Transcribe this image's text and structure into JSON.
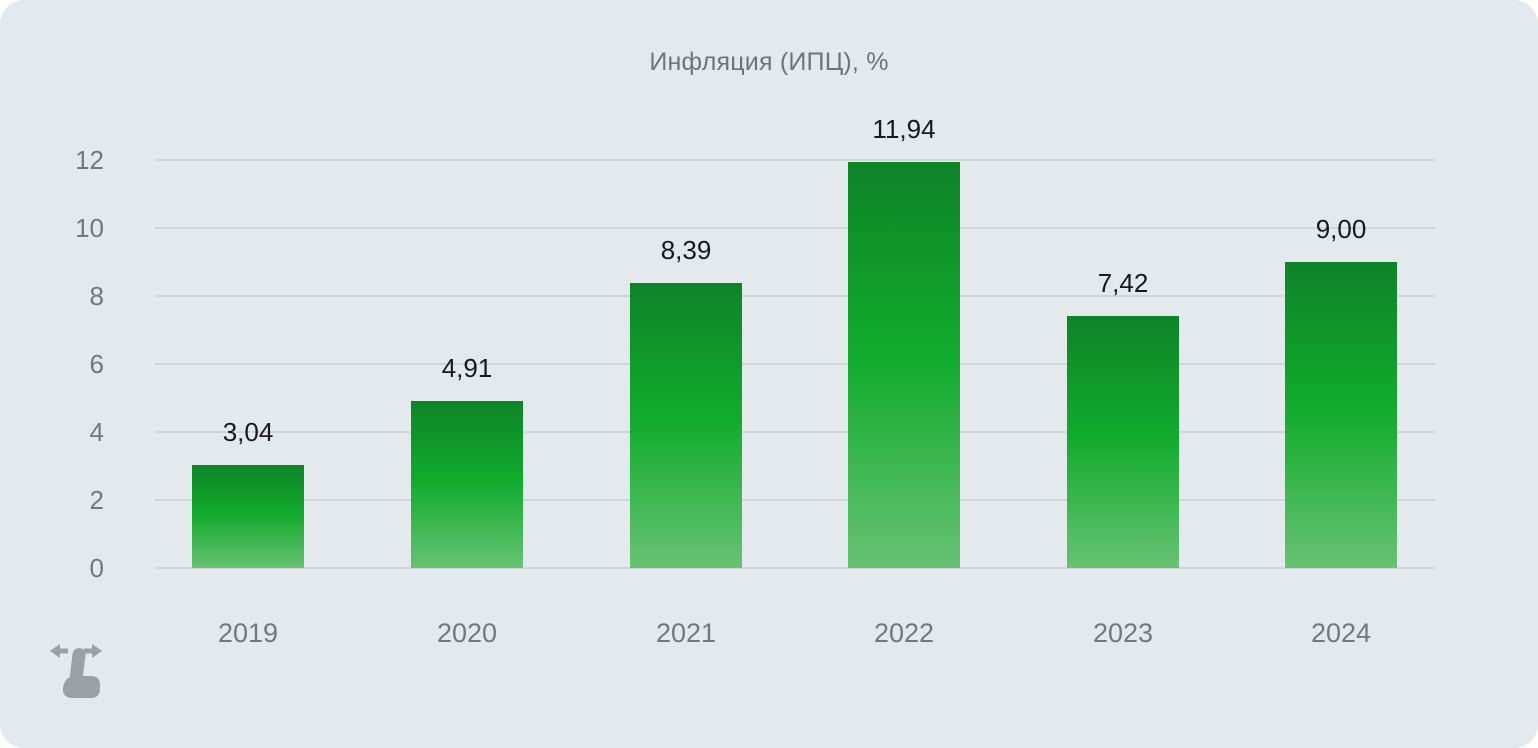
{
  "title": "Инфляция (ИПЦ), %",
  "chart_data": {
    "type": "bar",
    "title": "Инфляция (ИПЦ), %",
    "categories": [
      "2019",
      "2020",
      "2021",
      "2022",
      "2023",
      "2024"
    ],
    "values": [
      3.04,
      4.91,
      8.39,
      11.94,
      7.42,
      9.0
    ],
    "value_labels": [
      "3,04",
      "4,91",
      "8,39",
      "11,94",
      "7,42",
      "9,00"
    ],
    "xlabel": "",
    "ylabel": "",
    "ylim": [
      0,
      12
    ],
    "yticks": [
      0,
      2,
      4,
      6,
      8,
      10,
      12
    ],
    "grid": true,
    "legend": "none",
    "decimal_separator": ",",
    "colors": {
      "background": "#e4e9ed",
      "gridline": "#d2d6da",
      "tick_label": "#73787e",
      "value_label": "#17191d",
      "title": "#6e747a",
      "bar_gradient_top": "#0d8427",
      "bar_gradient_mid": "#12ab2d",
      "bar_gradient_bottom": "#67c273"
    }
  },
  "hint": {
    "icon": "swipe-horizontal-icon",
    "color": "#9aa0a6"
  }
}
